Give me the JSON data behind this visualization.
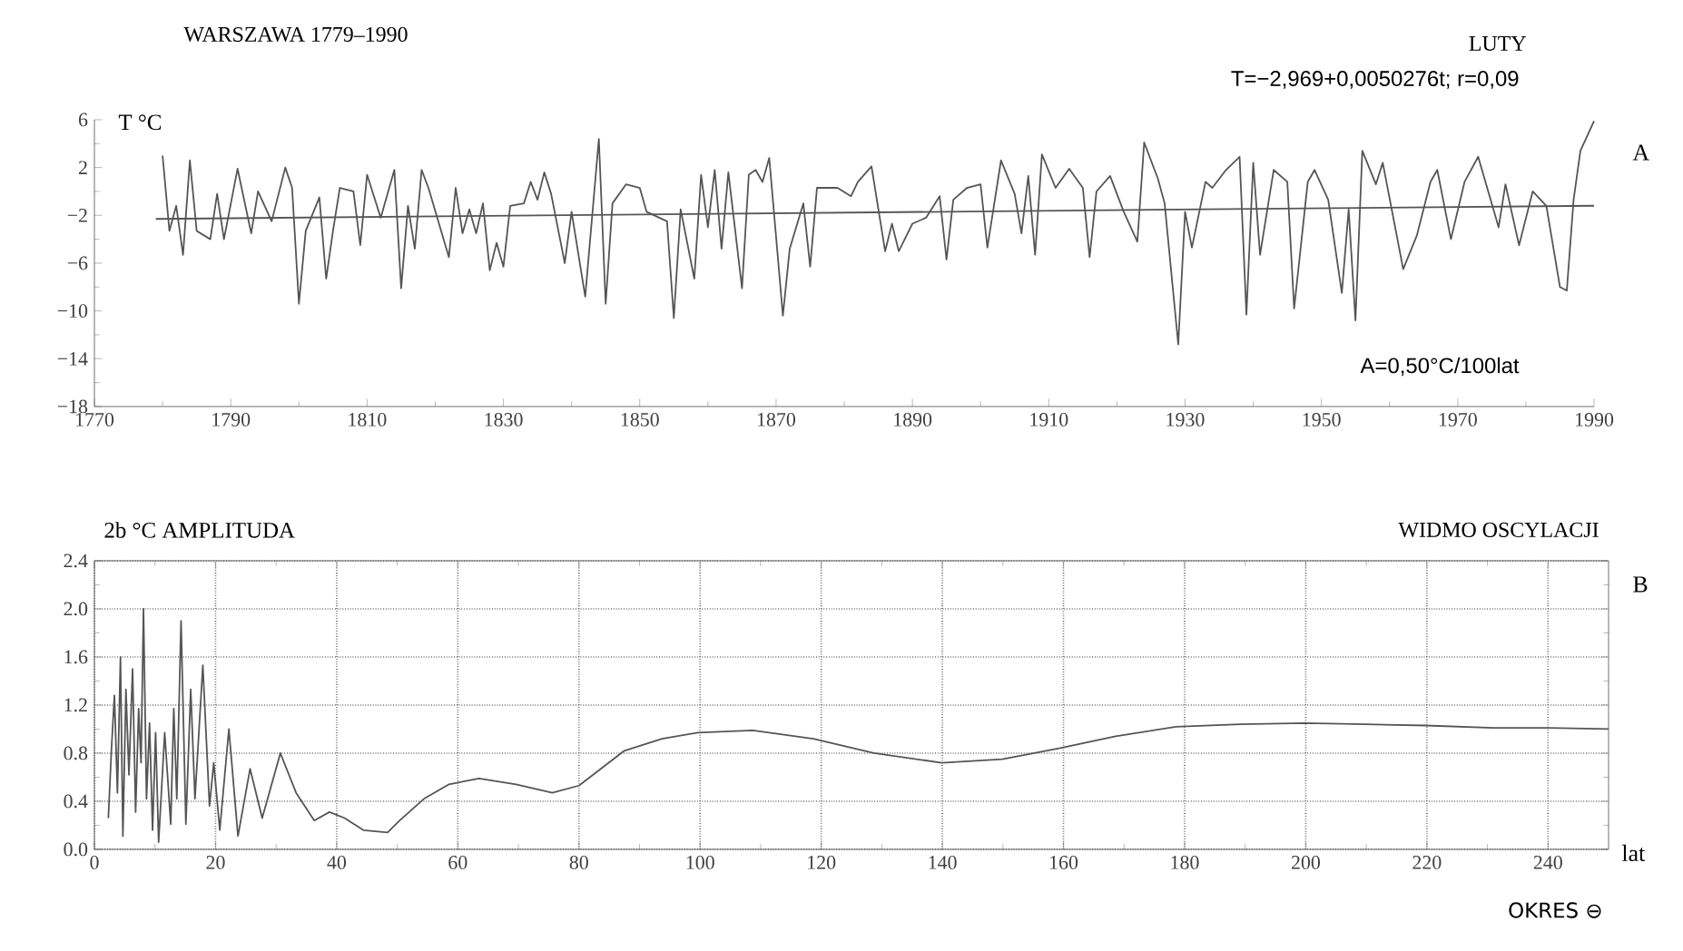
{
  "chart_data": [
    {
      "type": "line",
      "title": "WARSZAWA 1779–1990",
      "subtitle": "LUTY",
      "ylabel": "T  °C",
      "annotations": [
        "T=−2,969+0,0050276t;   r=0,09",
        "A=0,50°C/100lat",
        "A"
      ],
      "xlim": [
        1770,
        1990
      ],
      "xticks": [
        1770,
        1790,
        1810,
        1830,
        1850,
        1870,
        1890,
        1910,
        1930,
        1950,
        1970,
        1990
      ],
      "ylim": [
        -18,
        6
      ],
      "yticks": [
        {
          "value": -18,
          "label": "−18"
        },
        {
          "value": -14,
          "label": "−14"
        },
        {
          "value": -10,
          "label": "−10"
        },
        {
          "value": -6,
          "label": "−6"
        },
        {
          "value": -2,
          "label": "−2"
        },
        2,
        6
      ],
      "grid": false,
      "series": [
        {
          "color": "#555555",
          "x": [
            1780,
            1781,
            1782,
            1783,
            1784,
            1785,
            1787,
            1788,
            1789,
            1791,
            1793,
            1794,
            1796,
            1798,
            1799,
            1800,
            1801,
            1803,
            1804,
            1805,
            1806,
            1808,
            1809,
            1810,
            1812,
            1814,
            1815,
            1816,
            1817,
            1818,
            1819,
            1822,
            1823,
            1824,
            1825,
            1826,
            1827,
            1828,
            1829,
            1830,
            1831,
            1833,
            1834,
            1835,
            1836,
            1837,
            1839,
            1840,
            1842,
            1844,
            1845,
            1846,
            1848,
            1850,
            1851,
            1854,
            1855,
            1856,
            1858,
            1859,
            1860,
            1861,
            1862,
            1863,
            1865,
            1866,
            1867,
            1868,
            1869,
            1871,
            1872,
            1874,
            1875,
            1876,
            1879,
            1881,
            1882,
            1884,
            1886,
            1887,
            1888,
            1890,
            1892,
            1894,
            1895,
            1896,
            1898,
            1900,
            1901,
            1903,
            1905,
            1906,
            1907,
            1908,
            1909,
            1911,
            1913,
            1915,
            1916,
            1917,
            1919,
            1921,
            1923,
            1924,
            1926,
            1927,
            1929,
            1930,
            1931,
            1933,
            1934,
            1936,
            1938,
            1939,
            1940,
            1941,
            1943,
            1945,
            1946,
            1948,
            1949,
            1951,
            1953,
            1954,
            1955,
            1956,
            1958,
            1959,
            1962,
            1964,
            1966,
            1967,
            1969,
            1971,
            1973,
            1976,
            1977,
            1979,
            1981,
            1983,
            1985,
            1986,
            1987,
            1988,
            1990
          ],
          "values": [
            3.0,
            -3.3,
            -1.2,
            -5.3,
            2.6,
            -3.3,
            -4.0,
            -0.2,
            -4.0,
            1.9,
            -3.5,
            0,
            -2.5,
            2.0,
            0.3,
            -9.4,
            -3.3,
            -0.5,
            -7.3,
            -3.3,
            0.3,
            0,
            -4.5,
            1.4,
            -2.2,
            1.8,
            -8.1,
            -1.2,
            -4.8,
            1.8,
            0.3,
            -5.5,
            0.3,
            -3.5,
            -1.5,
            -3.5,
            -1.0,
            -6.6,
            -4.3,
            -6.3,
            -1.2,
            -1.0,
            0.8,
            -0.7,
            1.6,
            -0.2,
            -6.0,
            -1.7,
            -8.8,
            4.4,
            -9.4,
            -1.0,
            0.6,
            0.3,
            -1.7,
            -2.5,
            -10.6,
            -1.5,
            -7.3,
            1.4,
            -3.0,
            1.8,
            -4.8,
            1.6,
            -8.1,
            1.4,
            1.8,
            0.8,
            2.8,
            -10.4,
            -4.8,
            -1.0,
            -6.3,
            0.3,
            0.3,
            -0.4,
            0.8,
            2.1,
            -5.0,
            -2.7,
            -5.0,
            -2.7,
            -2.2,
            -0.4,
            -5.7,
            -0.7,
            0.3,
            0.6,
            -4.7,
            2.6,
            -0.2,
            -3.5,
            1.3,
            -5.3,
            3.1,
            0.3,
            1.9,
            0.3,
            -5.5,
            0.0,
            1.3,
            -1.7,
            -4.2,
            4.1,
            1.1,
            -1.0,
            -12.8,
            -1.7,
            -4.7,
            0.8,
            0.3,
            1.8,
            2.9,
            -10.3,
            2.4,
            -5.3,
            1.8,
            0.8,
            -9.8,
            0.8,
            1.8,
            -0.7,
            -8.5,
            -1.5,
            -10.8,
            3.4,
            0.6,
            2.4,
            -6.5,
            -3.7,
            0.8,
            1.8,
            -4.0,
            0.8,
            2.9,
            -3.0,
            0.6,
            -4.5,
            0.0,
            -1.2,
            -8.0,
            -8.3,
            -0.7,
            3.4,
            5.9
          ]
        },
        {
          "type": "line",
          "color": "#555555",
          "x": [
            1779,
            1990
          ],
          "values": [
            -2.3,
            -1.2
          ]
        }
      ]
    },
    {
      "type": "line",
      "title": "WIDMO OSCYLACJI",
      "ylabel": "2b °C AMPLITUDA",
      "xlabel": "OKRES ⊖",
      "annotations": [
        "lat",
        "B"
      ],
      "xlim": [
        0,
        250
      ],
      "xticks": [
        0,
        20,
        40,
        60,
        80,
        100,
        120,
        140,
        160,
        180,
        200,
        220,
        240
      ],
      "ylim": [
        0,
        2.4
      ],
      "yticks": [
        {
          "value": 0,
          "label": "0.0"
        },
        {
          "value": 0.4,
          "label": "0.4"
        },
        {
          "value": 0.8,
          "label": "0.8"
        },
        {
          "value": 1.2,
          "label": "1.2"
        },
        {
          "value": 1.6,
          "label": "1.6"
        },
        {
          "value": 2,
          "label": "2.0"
        },
        {
          "value": 2.4,
          "label": "2.4"
        }
      ],
      "grid": true,
      "color": "#555555",
      "x": [
        2.3,
        2.8,
        3.3,
        3.8,
        4.3,
        4.7,
        5.2,
        5.7,
        6.3,
        6.8,
        7.3,
        7.7,
        8.1,
        8.6,
        9.1,
        9.6,
        10.1,
        10.6,
        11.6,
        12.6,
        13.1,
        13.6,
        14.3,
        15.1,
        15.9,
        16.6,
        17.9,
        19.0,
        19.7,
        20.7,
        22.2,
        23.7,
        25.7,
        27.7,
        30.7,
        33.3,
        36.3,
        38.8,
        41.3,
        44.4,
        48.4,
        50.4,
        54.4,
        58.5,
        63.5,
        69.6,
        75.6,
        80,
        87.5,
        93.7,
        99.6,
        108.7,
        118.7,
        128.7,
        139.9,
        149.9,
        159.3,
        168.6,
        178.6,
        189.2,
        199.9,
        209.8,
        219.8,
        231,
        240,
        250
      ],
      "values": [
        0.26,
        0.82,
        1.28,
        0.47,
        1.6,
        0.11,
        1.33,
        0.62,
        1.5,
        0.31,
        1.17,
        0.72,
        2.0,
        0.42,
        1.05,
        0.16,
        0.97,
        0.06,
        0.97,
        0.21,
        1.17,
        0.42,
        1.9,
        0.21,
        1.33,
        0.42,
        1.53,
        0.36,
        0.72,
        0.16,
        1.0,
        0.11,
        0.67,
        0.26,
        0.8,
        0.47,
        0.24,
        0.31,
        0.26,
        0.16,
        0.14,
        0.24,
        0.42,
        0.54,
        0.59,
        0.54,
        0.47,
        0.53,
        0.82,
        0.92,
        0.97,
        0.99,
        0.92,
        0.8,
        0.72,
        0.75,
        0.84,
        0.94,
        1.02,
        1.04,
        1.05,
        1.04,
        1.03,
        1.01,
        1.01,
        1.0
      ]
    }
  ]
}
